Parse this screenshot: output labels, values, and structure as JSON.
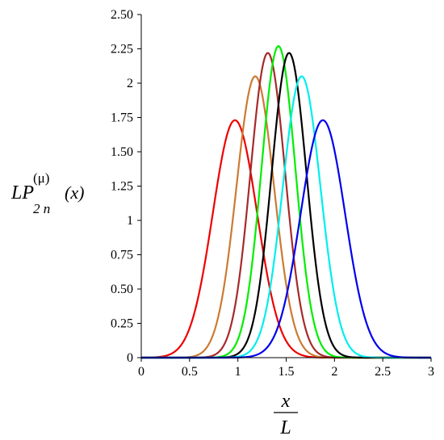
{
  "chart_data": {
    "type": "line",
    "title": "",
    "ylabel": {
      "main": "LP",
      "superscript": "(μ)",
      "subscript": "2 n",
      "argument": "(x)"
    },
    "xlabel": {
      "numerator": "x",
      "denominator": "L"
    },
    "xlim": [
      0,
      3
    ],
    "ylim": [
      0,
      2.5
    ],
    "x_ticks": [
      {
        "value": 0,
        "label": "0"
      },
      {
        "value": 0.5,
        "label": "0.5"
      },
      {
        "value": 1,
        "label": "1"
      },
      {
        "value": 1.5,
        "label": "1.5"
      },
      {
        "value": 2,
        "label": "2"
      },
      {
        "value": 2.5,
        "label": "2.5"
      },
      {
        "value": 3,
        "label": "3"
      }
    ],
    "y_ticks": [
      {
        "value": 0,
        "label": "0"
      },
      {
        "value": 0.25,
        "label": "0.25"
      },
      {
        "value": 0.5,
        "label": "0.50"
      },
      {
        "value": 0.75,
        "label": "0.75"
      },
      {
        "value": 1,
        "label": "1"
      },
      {
        "value": 1.25,
        "label": "1.25"
      },
      {
        "value": 1.5,
        "label": "1.50"
      },
      {
        "value": 1.75,
        "label": "1.75"
      },
      {
        "value": 2,
        "label": "2"
      },
      {
        "value": 2.25,
        "label": "2.25"
      },
      {
        "value": 2.5,
        "label": "2.50"
      }
    ],
    "grid": false,
    "legend": "none",
    "series": [
      {
        "color": "#ee0000",
        "peak_x": 0.97,
        "peak_y": 1.73,
        "sigma": 0.23
      },
      {
        "color": "#cc7a33",
        "peak_x": 1.18,
        "peak_y": 2.05,
        "sigma": 0.195
      },
      {
        "color": "#a52a2a",
        "peak_x": 1.31,
        "peak_y": 2.22,
        "sigma": 0.18
      },
      {
        "color": "#00ee00",
        "peak_x": 1.42,
        "peak_y": 2.27,
        "sigma": 0.176
      },
      {
        "color": "#000000",
        "peak_x": 1.53,
        "peak_y": 2.22,
        "sigma": 0.18
      },
      {
        "color": "#00eeee",
        "peak_x": 1.66,
        "peak_y": 2.05,
        "sigma": 0.195
      },
      {
        "color": "#0000ee",
        "peak_x": 1.88,
        "peak_y": 1.73,
        "sigma": 0.23
      }
    ]
  }
}
